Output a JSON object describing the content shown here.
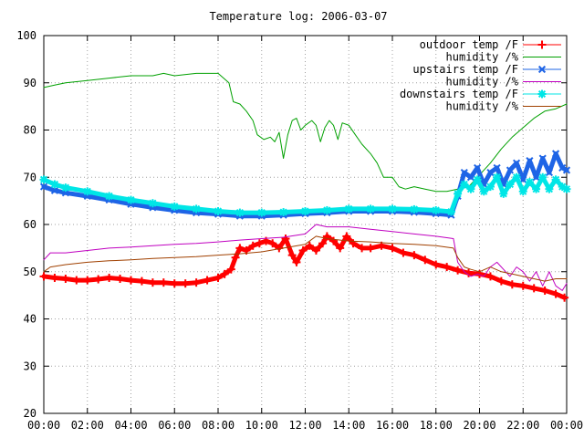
{
  "chart_data": {
    "type": "line",
    "title": "Temperature log: 2006-03-07",
    "xlabel": "",
    "ylabel": "",
    "x_ticks": [
      "00:00",
      "02:00",
      "04:00",
      "06:00",
      "08:00",
      "10:00",
      "12:00",
      "14:00",
      "16:00",
      "18:00",
      "20:00",
      "22:00",
      "00:00"
    ],
    "x_range_hours": [
      0,
      24
    ],
    "y_ticks": [
      20,
      30,
      40,
      50,
      60,
      70,
      80,
      90,
      100
    ],
    "ylim": [
      20,
      100
    ],
    "grid": true,
    "legend_position": "top-right",
    "series": [
      {
        "name": "outdoor temp /F",
        "color": "#ff0000",
        "marker": "plus",
        "points": [
          [
            0,
            49
          ],
          [
            0.5,
            48.7
          ],
          [
            1,
            48.5
          ],
          [
            1.5,
            48.2
          ],
          [
            2,
            48.2
          ],
          [
            2.5,
            48.4
          ],
          [
            3,
            48.7
          ],
          [
            3.5,
            48.5
          ],
          [
            4,
            48.2
          ],
          [
            4.5,
            48
          ],
          [
            5,
            47.7
          ],
          [
            5.5,
            47.7
          ],
          [
            6,
            47.5
          ],
          [
            6.5,
            47.5
          ],
          [
            7,
            47.7
          ],
          [
            7.5,
            48.2
          ],
          [
            8,
            48.7
          ],
          [
            8.3,
            49.5
          ],
          [
            8.6,
            50.5
          ],
          [
            8.8,
            53
          ],
          [
            9,
            55
          ],
          [
            9.3,
            54.5
          ],
          [
            9.6,
            55.5
          ],
          [
            9.9,
            56
          ],
          [
            10.2,
            56.5
          ],
          [
            10.5,
            56
          ],
          [
            10.8,
            55
          ],
          [
            11.1,
            57
          ],
          [
            11.4,
            53.5
          ],
          [
            11.6,
            52
          ],
          [
            11.9,
            54.5
          ],
          [
            12.2,
            55.5
          ],
          [
            12.5,
            54.5
          ],
          [
            12.8,
            56
          ],
          [
            13.0,
            57.5
          ],
          [
            13.3,
            56.5
          ],
          [
            13.6,
            55
          ],
          [
            13.9,
            57.5
          ],
          [
            14.2,
            56
          ],
          [
            14.6,
            55
          ],
          [
            15.0,
            55
          ],
          [
            15.5,
            55.5
          ],
          [
            16,
            55
          ],
          [
            16.5,
            54
          ],
          [
            17,
            53.5
          ],
          [
            17.5,
            52.5
          ],
          [
            18,
            51.5
          ],
          [
            18.5,
            51
          ],
          [
            19,
            50.3
          ],
          [
            19.5,
            49.7
          ],
          [
            20,
            49.5
          ],
          [
            20.5,
            49
          ],
          [
            21,
            48
          ],
          [
            21.5,
            47.3
          ],
          [
            22,
            47
          ],
          [
            22.5,
            46.5
          ],
          [
            23,
            46
          ],
          [
            23.5,
            45.3
          ],
          [
            23.9,
            44.5
          ]
        ]
      },
      {
        "name": "humidity /%",
        "color": "#00a000",
        "marker": "none",
        "points": [
          [
            0,
            89
          ],
          [
            0.5,
            89.5
          ],
          [
            1,
            90
          ],
          [
            2,
            90.5
          ],
          [
            3,
            91
          ],
          [
            4,
            91.5
          ],
          [
            5,
            91.5
          ],
          [
            5.5,
            92
          ],
          [
            6,
            91.5
          ],
          [
            7,
            92
          ],
          [
            8,
            92
          ],
          [
            8.5,
            90
          ],
          [
            8.7,
            86
          ],
          [
            9,
            85.5
          ],
          [
            9.3,
            84
          ],
          [
            9.6,
            82
          ],
          [
            9.8,
            79
          ],
          [
            10.1,
            78
          ],
          [
            10.4,
            78.5
          ],
          [
            10.6,
            77.5
          ],
          [
            10.8,
            79.5
          ],
          [
            11,
            74
          ],
          [
            11.2,
            79
          ],
          [
            11.4,
            82
          ],
          [
            11.6,
            82.5
          ],
          [
            11.8,
            80
          ],
          [
            12,
            81
          ],
          [
            12.3,
            82
          ],
          [
            12.5,
            81
          ],
          [
            12.7,
            77.5
          ],
          [
            12.9,
            80.5
          ],
          [
            13.1,
            82
          ],
          [
            13.3,
            81
          ],
          [
            13.5,
            78
          ],
          [
            13.7,
            81.5
          ],
          [
            14,
            81
          ],
          [
            14.3,
            79
          ],
          [
            14.6,
            77
          ],
          [
            15,
            75
          ],
          [
            15.3,
            73
          ],
          [
            15.6,
            70
          ],
          [
            16,
            70
          ],
          [
            16.3,
            68
          ],
          [
            16.6,
            67.5
          ],
          [
            17,
            68
          ],
          [
            17.5,
            67.5
          ],
          [
            18,
            67
          ],
          [
            18.5,
            67
          ],
          [
            19,
            67.5
          ],
          [
            19.5,
            68
          ],
          [
            20,
            70.5
          ],
          [
            20.5,
            73
          ],
          [
            21,
            76
          ],
          [
            21.5,
            78.5
          ],
          [
            22,
            80.5
          ],
          [
            22.5,
            82.5
          ],
          [
            23,
            84
          ],
          [
            23.5,
            84.5
          ],
          [
            24,
            85.5
          ]
        ]
      },
      {
        "name": "upstairs temp /F",
        "color": "#1e64e6",
        "marker": "cross",
        "points": [
          [
            0,
            68
          ],
          [
            0.5,
            67.2
          ],
          [
            1,
            66.7
          ],
          [
            2,
            66
          ],
          [
            3,
            65.2
          ],
          [
            4,
            64.3
          ],
          [
            5,
            63.6
          ],
          [
            6,
            63
          ],
          [
            7,
            62.5
          ],
          [
            8,
            62.2
          ],
          [
            9,
            61.8
          ],
          [
            10,
            61.8
          ],
          [
            11,
            62
          ],
          [
            12,
            62.3
          ],
          [
            13,
            62.5
          ],
          [
            14,
            62.8
          ],
          [
            15,
            62.8
          ],
          [
            16,
            62.8
          ],
          [
            17,
            62.6
          ],
          [
            18,
            62.3
          ],
          [
            18.7,
            62
          ],
          [
            19,
            66
          ],
          [
            19.3,
            71
          ],
          [
            19.6,
            70
          ],
          [
            19.9,
            72
          ],
          [
            20.2,
            68.5
          ],
          [
            20.5,
            71
          ],
          [
            20.8,
            72
          ],
          [
            21.1,
            68.5
          ],
          [
            21.4,
            71.5
          ],
          [
            21.7,
            73
          ],
          [
            22,
            69.5
          ],
          [
            22.3,
            73.5
          ],
          [
            22.6,
            70
          ],
          [
            22.9,
            74
          ],
          [
            23.2,
            71
          ],
          [
            23.5,
            75
          ],
          [
            23.8,
            72
          ],
          [
            24,
            71.5
          ]
        ]
      },
      {
        "name": "humidity /%",
        "color": "#c000c0",
        "marker": "none",
        "points": [
          [
            0,
            52.5
          ],
          [
            0.3,
            54
          ],
          [
            1,
            54
          ],
          [
            2,
            54.5
          ],
          [
            3,
            55
          ],
          [
            4,
            55.2
          ],
          [
            5,
            55.5
          ],
          [
            6,
            55.8
          ],
          [
            7,
            56
          ],
          [
            8,
            56.3
          ],
          [
            9,
            56.7
          ],
          [
            10,
            57
          ],
          [
            11,
            57.3
          ],
          [
            12,
            58
          ],
          [
            12.5,
            60
          ],
          [
            13,
            59.5
          ],
          [
            14,
            59.5
          ],
          [
            15,
            59
          ],
          [
            16,
            58.5
          ],
          [
            17,
            58
          ],
          [
            18,
            57.5
          ],
          [
            18.8,
            57
          ],
          [
            19,
            52
          ],
          [
            19.3,
            50
          ],
          [
            19.6,
            49
          ],
          [
            19.9,
            49.5
          ],
          [
            20.2,
            49
          ],
          [
            20.5,
            51
          ],
          [
            20.8,
            52
          ],
          [
            21.1,
            50.5
          ],
          [
            21.4,
            49
          ],
          [
            21.7,
            51
          ],
          [
            22,
            50
          ],
          [
            22.3,
            48
          ],
          [
            22.6,
            50
          ],
          [
            22.9,
            47
          ],
          [
            23.2,
            50
          ],
          [
            23.5,
            47
          ],
          [
            23.8,
            46
          ],
          [
            24,
            47.5
          ]
        ]
      },
      {
        "name": "downstairs temp /F",
        "color": "#00e6e6",
        "marker": "star",
        "points": [
          [
            0,
            69.5
          ],
          [
            0.5,
            68.5
          ],
          [
            1,
            67.8
          ],
          [
            2,
            67
          ],
          [
            3,
            66
          ],
          [
            4,
            65.2
          ],
          [
            5,
            64.5
          ],
          [
            6,
            63.8
          ],
          [
            7,
            63.3
          ],
          [
            8,
            62.8
          ],
          [
            9,
            62.5
          ],
          [
            10,
            62.5
          ],
          [
            11,
            62.6
          ],
          [
            12,
            62.8
          ],
          [
            13,
            63
          ],
          [
            14,
            63.3
          ],
          [
            15,
            63.3
          ],
          [
            16,
            63.3
          ],
          [
            17,
            63.2
          ],
          [
            18,
            63
          ],
          [
            18.7,
            62.7
          ],
          [
            19,
            66.5
          ],
          [
            19.3,
            68.5
          ],
          [
            19.6,
            67.5
          ],
          [
            19.9,
            69.5
          ],
          [
            20.2,
            67
          ],
          [
            20.5,
            68
          ],
          [
            20.8,
            70
          ],
          [
            21.1,
            66.5
          ],
          [
            21.4,
            68.5
          ],
          [
            21.7,
            70
          ],
          [
            22,
            67
          ],
          [
            22.3,
            69
          ],
          [
            22.6,
            67.5
          ],
          [
            22.9,
            70
          ],
          [
            23.2,
            67.5
          ],
          [
            23.5,
            69.5
          ],
          [
            23.8,
            68
          ],
          [
            24,
            67.5
          ]
        ]
      },
      {
        "name": "humidity /%",
        "color": "#a04000",
        "marker": "none",
        "points": [
          [
            0,
            50
          ],
          [
            0.3,
            51
          ],
          [
            1,
            51.5
          ],
          [
            2,
            52
          ],
          [
            3,
            52.3
          ],
          [
            4,
            52.5
          ],
          [
            5,
            52.8
          ],
          [
            6,
            53
          ],
          [
            7,
            53.2
          ],
          [
            8,
            53.5
          ],
          [
            9,
            53.8
          ],
          [
            10,
            54.2
          ],
          [
            11,
            55
          ],
          [
            12,
            55.8
          ],
          [
            12.5,
            57.5
          ],
          [
            13,
            57
          ],
          [
            14,
            56.5
          ],
          [
            15,
            56.3
          ],
          [
            16,
            56
          ],
          [
            17,
            55.8
          ],
          [
            18,
            55.5
          ],
          [
            18.8,
            55
          ],
          [
            19,
            53
          ],
          [
            19.3,
            51
          ],
          [
            19.6,
            50.5
          ],
          [
            20,
            50
          ],
          [
            20.5,
            51
          ],
          [
            21,
            50
          ],
          [
            21.5,
            49.5
          ],
          [
            22,
            49
          ],
          [
            22.5,
            48.5
          ],
          [
            23,
            48
          ],
          [
            23.5,
            48.5
          ],
          [
            24,
            48.5
          ]
        ]
      }
    ]
  }
}
